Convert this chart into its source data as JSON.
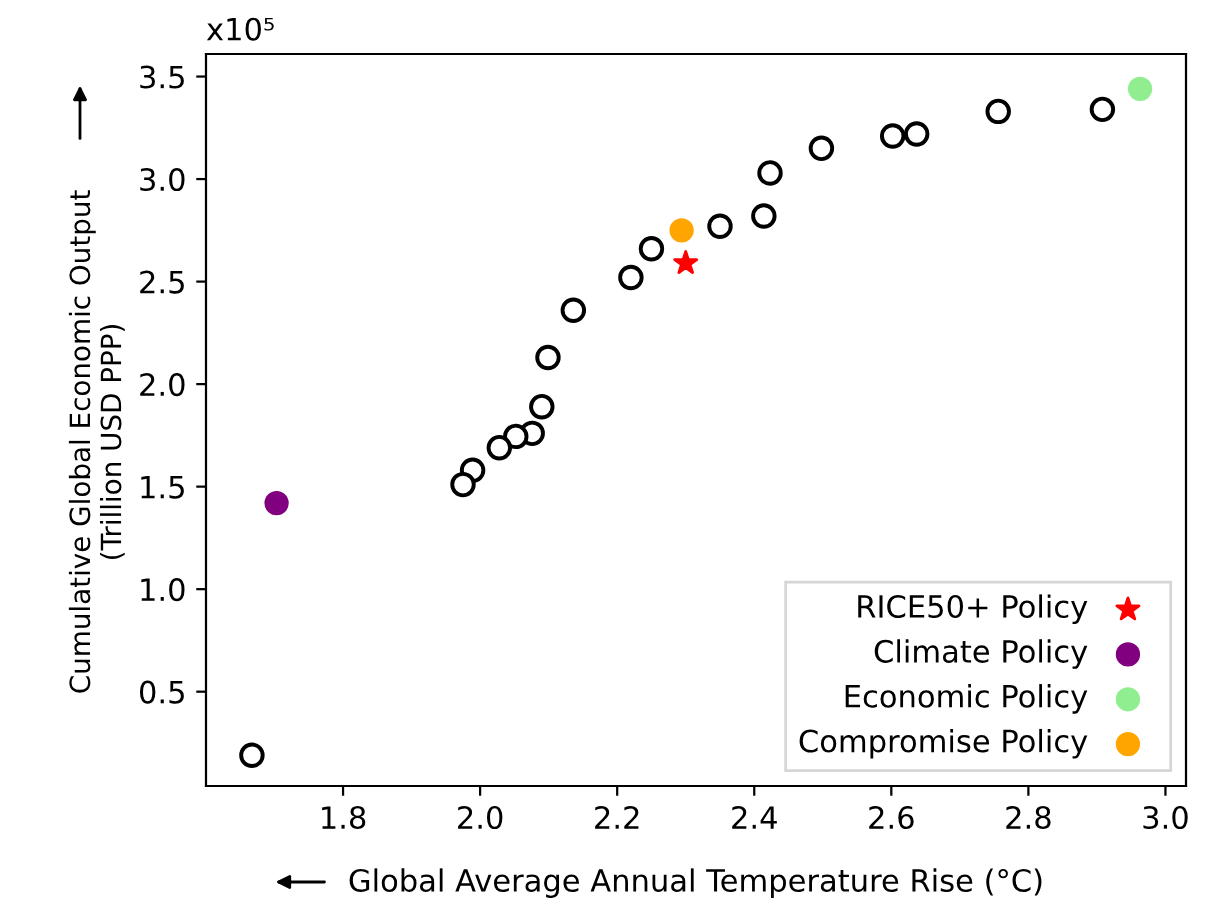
{
  "chart_data": {
    "type": "scatter",
    "xlabel": "Global Average Annual Temperature Rise (°C)",
    "ylabel": "Cumulative Global Economic Output\n(Trillion USD PPP)",
    "annotations": [
      "x10⁵"
    ],
    "xlim": [
      1.6,
      3.03
    ],
    "ylim": [
      0.04,
      3.61
    ],
    "xticks": [
      {
        "value": 1.8,
        "label": "1.8"
      },
      {
        "value": 2.0,
        "label": "2.0"
      },
      {
        "value": 2.2,
        "label": "2.2"
      },
      {
        "value": 2.4,
        "label": "2.4"
      },
      {
        "value": 2.6,
        "label": "2.6"
      },
      {
        "value": 2.8,
        "label": "2.8"
      },
      {
        "value": 3.0,
        "label": "3.0"
      }
    ],
    "yticks": [
      0.5,
      {
        "value": 1.0,
        "label": "1.0"
      },
      1.5,
      {
        "value": 2.0,
        "label": "2.0"
      },
      2.5,
      {
        "value": 3.0,
        "label": "3.0"
      },
      3.5
    ],
    "grid": false,
    "legend": "bottom right",
    "series": [
      {
        "color": "#ffffff",
        "marker": "circle",
        "x": [
          2.908,
          2.756,
          2.637,
          2.602,
          2.498,
          2.423,
          2.414,
          2.35,
          2.25,
          2.22,
          2.136,
          2.099,
          2.09,
          2.076,
          2.052,
          2.028,
          1.989,
          1.975,
          1.667
        ],
        "values": [
          3.34,
          3.33,
          3.22,
          3.21,
          3.15,
          3.03,
          2.82,
          2.77,
          2.66,
          2.52,
          2.36,
          2.13,
          1.89,
          1.76,
          1.745,
          1.69,
          1.58,
          1.51,
          0.19
        ]
      },
      {
        "name": "RICE50+ Policy",
        "color": "#ff0000",
        "marker": "star",
        "x": [
          2.3
        ],
        "values": [
          2.59
        ]
      },
      {
        "name": "Climate Policy",
        "color": "#800080",
        "marker": "circle",
        "x": [
          1.703
        ],
        "values": [
          1.42
        ]
      },
      {
        "name": "Economic Policy",
        "color": "#90ee90",
        "marker": "circle",
        "x": [
          2.963
        ],
        "values": [
          3.44
        ]
      },
      {
        "name": "Compromise Policy",
        "color": "#ffa500",
        "marker": "circle",
        "x": [
          2.294
        ],
        "values": [
          2.75
        ]
      }
    ]
  }
}
